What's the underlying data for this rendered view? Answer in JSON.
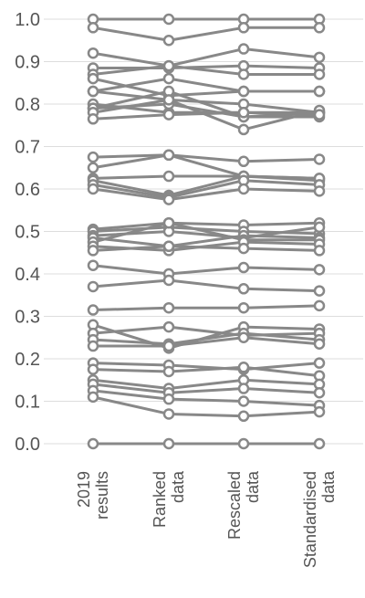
{
  "chart_data": {
    "type": "line",
    "title": "",
    "xlabel": "",
    "ylabel": "",
    "ylim": [
      0.0,
      1.0
    ],
    "yticks": [
      "0.0",
      "0.1",
      "0.2",
      "0.3",
      "0.4",
      "0.5",
      "0.6",
      "0.7",
      "0.8",
      "0.9",
      "1.0"
    ],
    "categories": [
      [
        "2019",
        "results"
      ],
      [
        "Ranked",
        "data"
      ],
      [
        "Rescaled",
        "data"
      ],
      [
        "Standardised",
        "data"
      ]
    ],
    "grid": true,
    "legend": "none",
    "series_color": "#888888",
    "grid_color": "#dddddd",
    "series": [
      {
        "values": [
          1.0,
          1.0,
          1.0,
          1.0
        ]
      },
      {
        "values": [
          0.98,
          0.95,
          0.98,
          0.98
        ]
      },
      {
        "values": [
          0.92,
          0.89,
          0.93,
          0.91
        ]
      },
      {
        "values": [
          0.885,
          0.885,
          0.89,
          0.885
        ]
      },
      {
        "values": [
          0.87,
          0.89,
          0.87,
          0.87
        ]
      },
      {
        "values": [
          0.86,
          0.82,
          0.83,
          0.83
        ]
      },
      {
        "values": [
          0.83,
          0.86,
          0.83,
          0.83
        ]
      },
      {
        "values": [
          0.83,
          0.81,
          0.8,
          0.78
        ]
      },
      {
        "values": [
          0.8,
          0.78,
          0.78,
          0.78
        ]
      },
      {
        "values": [
          0.79,
          0.8,
          0.77,
          0.77
        ]
      },
      {
        "values": [
          0.79,
          0.83,
          0.77,
          0.78
        ]
      },
      {
        "values": [
          0.78,
          0.81,
          0.74,
          0.785
        ]
      },
      {
        "values": [
          0.765,
          0.775,
          0.78,
          0.775
        ]
      },
      {
        "values": [
          0.675,
          0.68,
          0.665,
          0.67
        ]
      },
      {
        "values": [
          0.65,
          0.68,
          0.63,
          0.62
        ]
      },
      {
        "values": [
          0.625,
          0.63,
          0.63,
          0.625
        ]
      },
      {
        "values": [
          0.62,
          0.585,
          0.63,
          0.625
        ]
      },
      {
        "values": [
          0.61,
          0.58,
          0.62,
          0.61
        ]
      },
      {
        "values": [
          0.6,
          0.575,
          0.6,
          0.595
        ]
      },
      {
        "values": [
          0.505,
          0.52,
          0.515,
          0.52
        ]
      },
      {
        "values": [
          0.5,
          0.51,
          0.5,
          0.495
        ]
      },
      {
        "values": [
          0.49,
          0.5,
          0.485,
          0.51
        ]
      },
      {
        "values": [
          0.485,
          0.465,
          0.49,
          0.485
        ]
      },
      {
        "values": [
          0.475,
          0.52,
          0.48,
          0.48
        ]
      },
      {
        "values": [
          0.465,
          0.455,
          0.475,
          0.47
        ]
      },
      {
        "values": [
          0.455,
          0.465,
          0.46,
          0.455
        ]
      },
      {
        "values": [
          0.42,
          0.4,
          0.415,
          0.41
        ]
      },
      {
        "values": [
          0.37,
          0.385,
          0.365,
          0.36
        ]
      },
      {
        "values": [
          0.315,
          0.32,
          0.32,
          0.325
        ]
      },
      {
        "values": [
          0.28,
          0.225,
          0.275,
          0.27
        ]
      },
      {
        "values": [
          0.26,
          0.275,
          0.255,
          0.26
        ]
      },
      {
        "values": [
          0.245,
          0.235,
          0.26,
          0.245
        ]
      },
      {
        "values": [
          0.23,
          0.23,
          0.25,
          0.235
        ]
      },
      {
        "values": [
          0.19,
          0.185,
          0.175,
          0.19
        ]
      },
      {
        "values": [
          0.175,
          0.17,
          0.18,
          0.16
        ]
      },
      {
        "values": [
          0.15,
          0.13,
          0.15,
          0.14
        ]
      },
      {
        "values": [
          0.14,
          0.12,
          0.13,
          0.12
        ]
      },
      {
        "values": [
          0.125,
          0.105,
          0.1,
          0.09
        ]
      },
      {
        "values": [
          0.11,
          0.07,
          0.065,
          0.075
        ]
      },
      {
        "values": [
          0.0,
          0.0,
          0.0,
          0.0
        ]
      }
    ]
  }
}
